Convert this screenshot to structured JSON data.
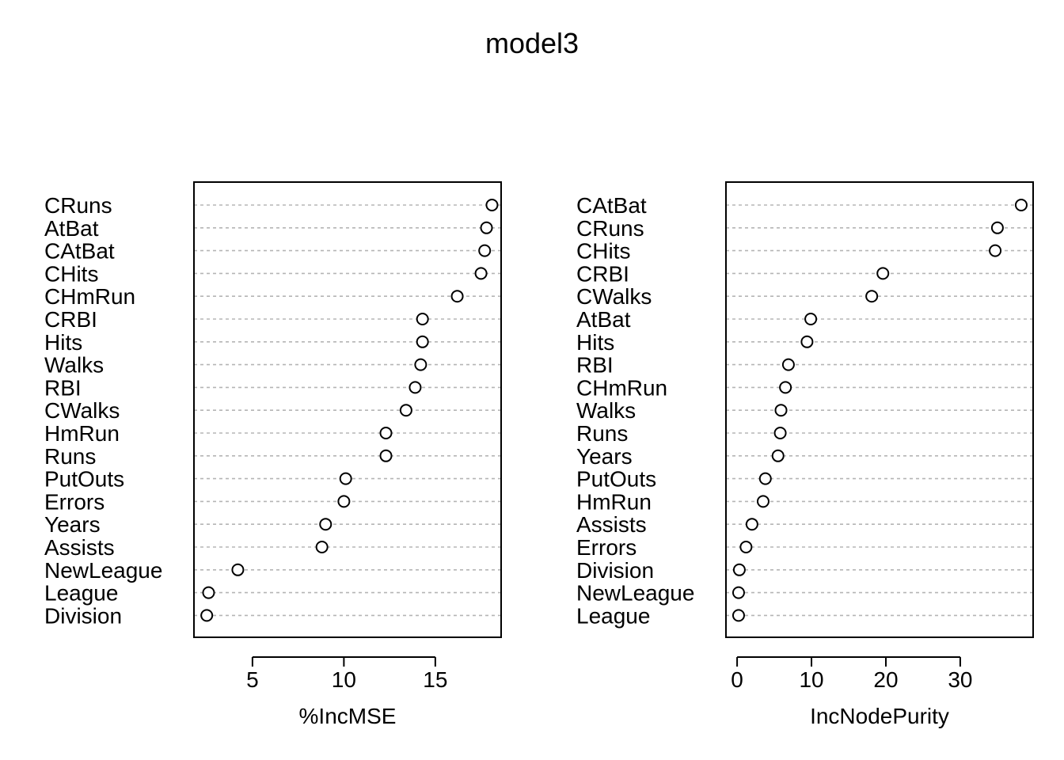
{
  "title": "model3",
  "chart_data": [
    {
      "type": "dotchart",
      "xlabel": "%IncMSE",
      "xlim": [
        1.8,
        18.6
      ],
      "xticks": [
        5,
        10,
        15
      ],
      "grid": "dotted horizontal lines per variable",
      "labels": [
        "CRuns",
        "AtBat",
        "CAtBat",
        "CHits",
        "CHmRun",
        "CRBI",
        "Hits",
        "Walks",
        "RBI",
        "CWalks",
        "HmRun",
        "Runs",
        "PutOuts",
        "Errors",
        "Years",
        "Assists",
        "NewLeague",
        "League",
        "Division"
      ],
      "values": [
        18.1,
        17.8,
        17.7,
        17.5,
        16.2,
        14.3,
        14.3,
        14.2,
        13.9,
        13.4,
        12.3,
        12.3,
        10.1,
        10.0,
        9.0,
        8.8,
        4.2,
        2.6,
        2.5
      ]
    },
    {
      "type": "dotchart",
      "xlabel": "IncNodePurity",
      "xlim": [
        -1.5,
        39.8
      ],
      "xticks": [
        0,
        10,
        20,
        30
      ],
      "grid": "dotted horizontal lines per variable",
      "labels": [
        "CAtBat",
        "CRuns",
        "CHits",
        "CRBI",
        "CWalks",
        "AtBat",
        "Hits",
        "RBI",
        "CHmRun",
        "Walks",
        "Runs",
        "Years",
        "PutOuts",
        "HmRun",
        "Assists",
        "Errors",
        "Division",
        "NewLeague",
        "League"
      ],
      "values": [
        38.2,
        35.0,
        34.7,
        19.6,
        18.1,
        9.9,
        9.4,
        6.9,
        6.5,
        5.9,
        5.8,
        5.5,
        3.8,
        3.5,
        2.0,
        1.2,
        0.3,
        0.2,
        0.2
      ]
    }
  ]
}
